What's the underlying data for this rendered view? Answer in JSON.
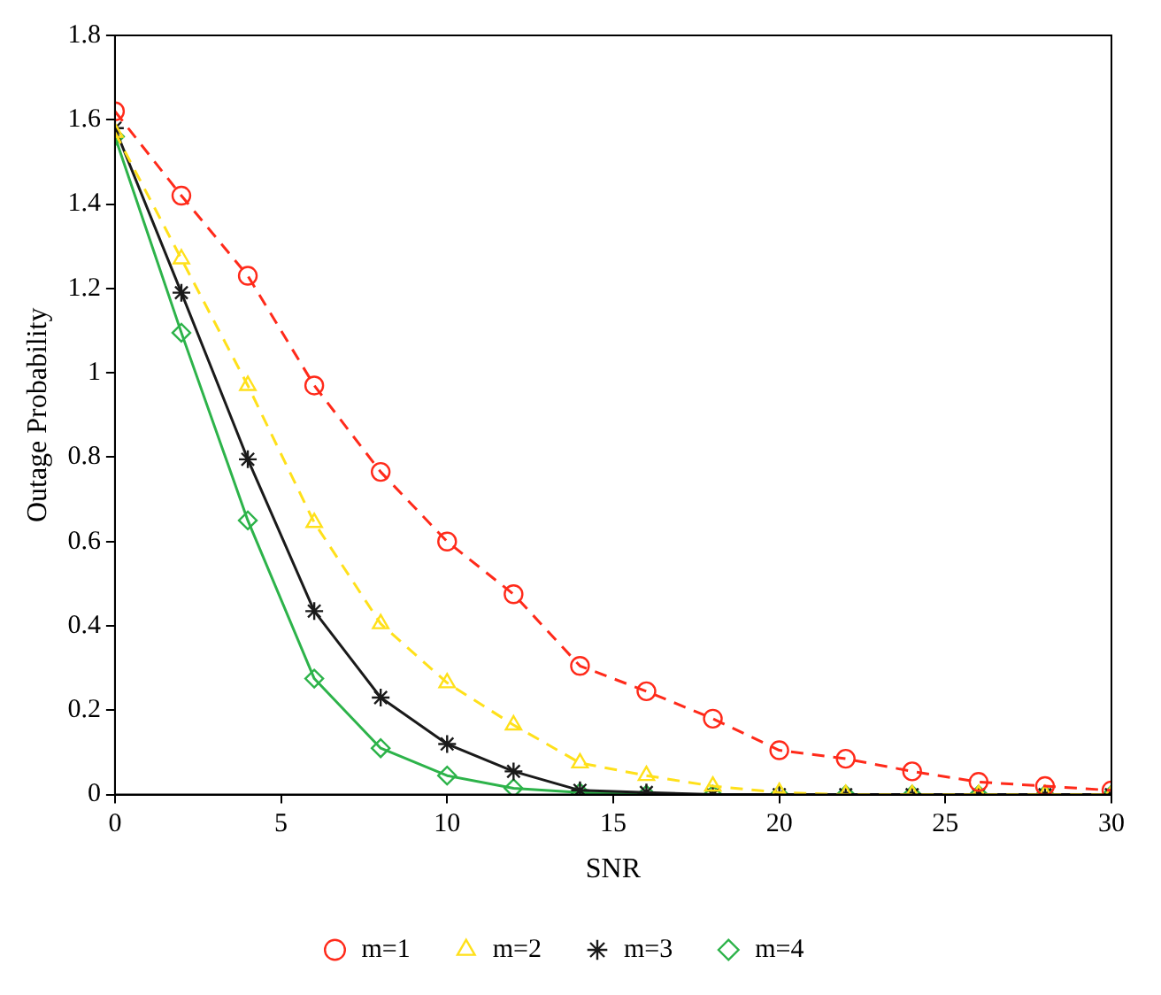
{
  "chart_data": {
    "type": "line",
    "xlabel": "SNR",
    "ylabel": "Outage Probability",
    "x": [
      0,
      2,
      4,
      6,
      8,
      10,
      12,
      14,
      16,
      18,
      20,
      22,
      24,
      26,
      28,
      30
    ],
    "xlim": [
      0,
      30
    ],
    "xticks": [
      0,
      5,
      10,
      15,
      20,
      25,
      30
    ],
    "ylim": [
      0,
      1.8
    ],
    "yticks": [
      0,
      0.2,
      0.4,
      0.6,
      0.8,
      1,
      1.2,
      1.4,
      1.6,
      1.8
    ],
    "grid": false,
    "legend": "bottom",
    "series": [
      {
        "name": "m=1",
        "color": "#ff2a1a",
        "marker": "circle",
        "line_style": "dashed",
        "values": [
          1.62,
          1.42,
          1.23,
          0.97,
          0.765,
          0.6,
          0.475,
          0.305,
          0.245,
          0.18,
          0.105,
          0.085,
          0.055,
          0.03,
          0.02,
          0.01
        ]
      },
      {
        "name": "m=2",
        "color": "#ffe01a",
        "marker": "triangle",
        "line_style": "dashed",
        "values": [
          1.57,
          1.27,
          0.97,
          0.645,
          0.405,
          0.265,
          0.165,
          0.075,
          0.045,
          0.02,
          0.005,
          0,
          0,
          0,
          0,
          0
        ]
      },
      {
        "name": "m=3",
        "color": "#1a1a1a",
        "marker": "cross",
        "line_style": "solid",
        "values": [
          1.58,
          1.19,
          0.795,
          0.435,
          0.23,
          0.12,
          0.055,
          0.01,
          0.005,
          0,
          0,
          0,
          0,
          0,
          0,
          0
        ]
      },
      {
        "name": "m=4",
        "color": "#2db34a",
        "marker": "diamond",
        "line_style": "solid",
        "values": [
          1.56,
          1.095,
          0.65,
          0.275,
          0.11,
          0.045,
          0.015,
          0.005,
          0,
          0,
          0,
          0,
          0,
          0,
          0,
          0
        ]
      }
    ]
  }
}
